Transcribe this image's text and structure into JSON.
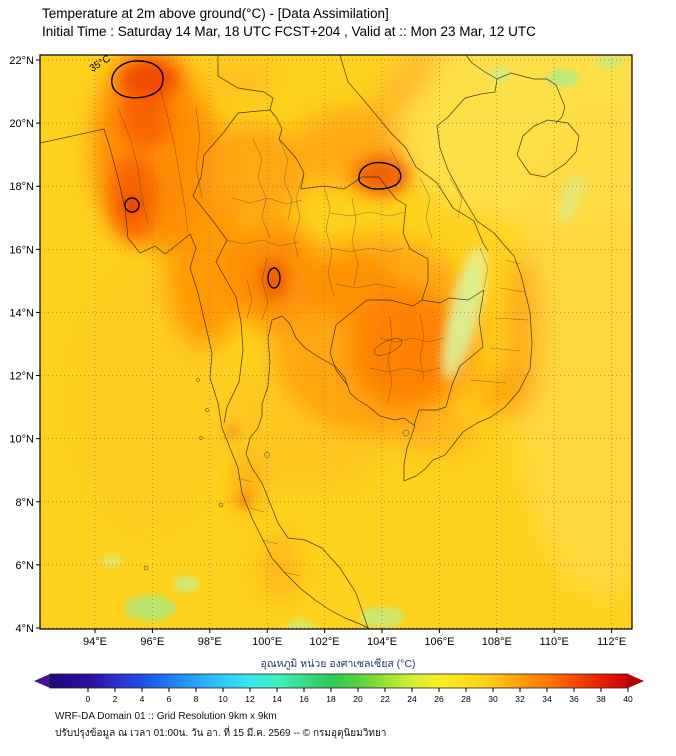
{
  "title": "Temperature at 2m above ground(°C) - [Data Assimilation]",
  "subtitle": "Initial Time : Saturday 14 Mar, 18 UTC FCST+204 , Valid at :: Mon 23 Mar, 12 UTC",
  "map": {
    "lat_ticks": [
      "22°N",
      "20°N",
      "18°N",
      "16°N",
      "14°N",
      "12°N",
      "10°N",
      "8°N",
      "6°N",
      "4°N"
    ],
    "lon_ticks": [
      "94°E",
      "96°E",
      "98°E",
      "100°E",
      "102°E",
      "104°E",
      "106°E",
      "108°E",
      "110°E",
      "112°E"
    ],
    "contour_label": "35°C"
  },
  "colorbar": {
    "label": "อุณหภูมิ หน่วย องศาเซลเซียส (°C)",
    "ticks": [
      0,
      2,
      4,
      6,
      8,
      10,
      12,
      14,
      16,
      18,
      20,
      22,
      24,
      26,
      28,
      30,
      32,
      34,
      36,
      38,
      40
    ],
    "stops": [
      {
        "t": -3,
        "color": "#1F0880"
      },
      {
        "t": 0,
        "color": "#2E0B9E"
      },
      {
        "t": 2,
        "color": "#2F2FC8"
      },
      {
        "t": 4,
        "color": "#1C50E8"
      },
      {
        "t": 6,
        "color": "#1F7AF0"
      },
      {
        "t": 8,
        "color": "#27A3F5"
      },
      {
        "t": 10,
        "color": "#30C9F8"
      },
      {
        "t": 12,
        "color": "#38E8EE"
      },
      {
        "t": 14,
        "color": "#40F0C0"
      },
      {
        "t": 16,
        "color": "#38DC88"
      },
      {
        "t": 18,
        "color": "#2EC85A"
      },
      {
        "t": 20,
        "color": "#55D23C"
      },
      {
        "t": 22,
        "color": "#96E232"
      },
      {
        "t": 24,
        "color": "#D2EE32"
      },
      {
        "t": 26,
        "color": "#F8EE28"
      },
      {
        "t": 28,
        "color": "#FFDC1E"
      },
      {
        "t": 30,
        "color": "#FFC814"
      },
      {
        "t": 32,
        "color": "#FF9E0A"
      },
      {
        "t": 34,
        "color": "#FF7800"
      },
      {
        "t": 36,
        "color": "#F84A00"
      },
      {
        "t": 38,
        "color": "#E62000"
      },
      {
        "t": 40,
        "color": "#CE0000"
      }
    ],
    "arrow_left_color": "#4A1090",
    "arrow_right_color": "#B80000"
  },
  "footer": {
    "line1": "WRF-DA Domain 01 :: Grid Resolution 9km x 9km",
    "line2": "ปรับปรุงข้อมูล ณ เวลา 01:00น. วัน อา. ที่ 15 มี.ค. 2569 -- © กรมอุตุนิยมวิทยา"
  }
}
